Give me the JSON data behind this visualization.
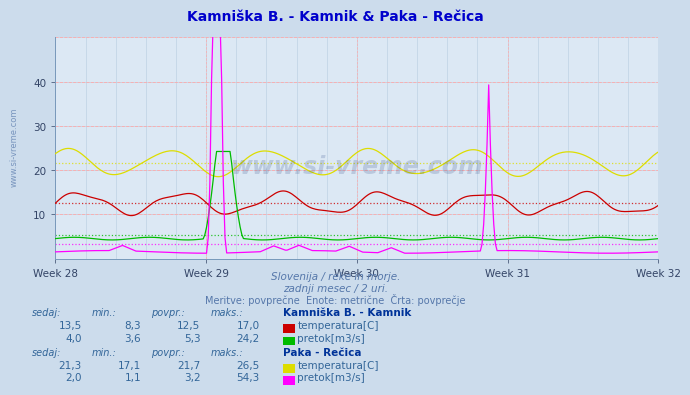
{
  "title": "Kamniška B. - Kamnik & Paka - Rečica",
  "title_color": "#0000cc",
  "bg_color": "#ccdcec",
  "plot_bg_color": "#dce8f4",
  "grid_color_major": "#ffaaaa",
  "grid_color_minor": "#b8cce0",
  "xlabel_weeks": [
    "Week 28",
    "Week 29",
    "Week 30",
    "Week 31",
    "Week 32"
  ],
  "ylim": [
    0,
    50
  ],
  "yticks": [
    10,
    20,
    30,
    40
  ],
  "n_points": 360,
  "subtitle1": "Slovenija / reke in morje.",
  "subtitle2": "zadnji mesec / 2 uri.",
  "subtitle3": "Meritve: povprečne  Enote: metrične  Črta: povprečje",
  "subtitle_color": "#5577aa",
  "legend_header_color": "#003399",
  "legend_val_color": "#336699",
  "legend_label_color": "#336699",
  "station1_name": "Kamniška B. - Kamnik",
  "station2_name": "Paka - Rečica",
  "temp1_color": "#cc0000",
  "flow1_color": "#00bb00",
  "temp2_color": "#dddd00",
  "flow2_color": "#ff00ff",
  "avg1_temp": 12.5,
  "avg1_flow": 5.3,
  "avg2_temp": 21.7,
  "avg2_flow": 3.2,
  "watermark": "www.si-vreme.com",
  "watermark_color": "#1a3a7a",
  "watermark_alpha": 0.18,
  "sidebar_text": "www.si-vreme.com",
  "sidebar_color": "#5577aa",
  "sidebar_alpha": 0.7
}
